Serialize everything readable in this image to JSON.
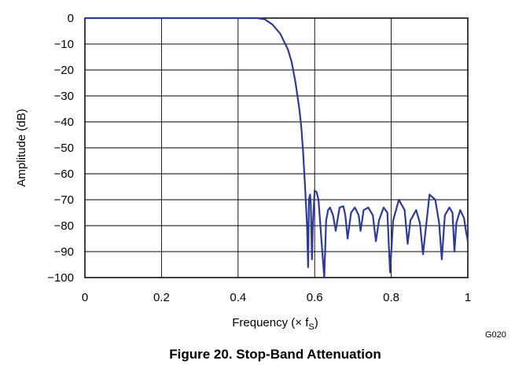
{
  "chart_data": {
    "type": "line",
    "title": "Figure 20. Stop-Band Attenuation",
    "xlabel": "Frequency (× f",
    "xlabel_sub": "S",
    "xlabel_close": ")",
    "ylabel": "Amplitude (dB)",
    "xlim": [
      0,
      1
    ],
    "ylim": [
      -100,
      0
    ],
    "x_ticks": [
      "0",
      "0.2",
      "0.4",
      "0.6",
      "0.8",
      "1"
    ],
    "y_ticks": [
      "0",
      "−10",
      "−20",
      "−30",
      "−40",
      "−50",
      "−60",
      "−70",
      "−80",
      "−90",
      "−100"
    ],
    "grid": true,
    "legend": "none",
    "figure_code": "G020",
    "series": [
      {
        "color": "#2e3a94",
        "x": [
          0,
          0.45,
          0.47,
          0.49,
          0.51,
          0.53,
          0.54,
          0.55,
          0.56,
          0.565,
          0.57,
          0.575,
          0.58,
          0.583,
          0.585,
          0.588,
          0.59,
          0.593,
          0.595,
          0.6,
          0.605,
          0.61,
          0.615,
          0.62,
          0.625,
          0.63,
          0.635,
          0.64,
          0.648,
          0.655,
          0.665,
          0.675,
          0.68,
          0.686,
          0.695,
          0.705,
          0.715,
          0.72,
          0.728,
          0.74,
          0.752,
          0.76,
          0.768,
          0.78,
          0.79,
          0.797,
          0.805,
          0.82,
          0.835,
          0.843,
          0.85,
          0.865,
          0.875,
          0.883,
          0.9,
          0.915,
          0.925,
          0.932,
          0.94,
          0.952,
          0.96,
          0.965,
          0.97,
          0.98,
          0.99,
          0.995,
          1.0
        ],
        "y": [
          0,
          0,
          -0.5,
          -2.5,
          -6,
          -12,
          -17,
          -25,
          -35,
          -42,
          -52,
          -65,
          -80,
          -96,
          -70,
          -68,
          -72,
          -93,
          -80,
          -66.5,
          -67,
          -70,
          -80,
          -90,
          -100,
          -78,
          -74,
          -73,
          -76,
          -82,
          -73,
          -72.5,
          -76,
          -85,
          -75,
          -73,
          -76,
          -82,
          -74,
          -73,
          -76,
          -86,
          -78,
          -73,
          -75,
          -98,
          -78,
          -70,
          -74,
          -87,
          -78,
          -74,
          -79,
          -91,
          -68,
          -70,
          -79,
          -93,
          -76,
          -73,
          -75,
          -90,
          -79,
          -74,
          -77,
          -82,
          -86
        ]
      }
    ]
  }
}
